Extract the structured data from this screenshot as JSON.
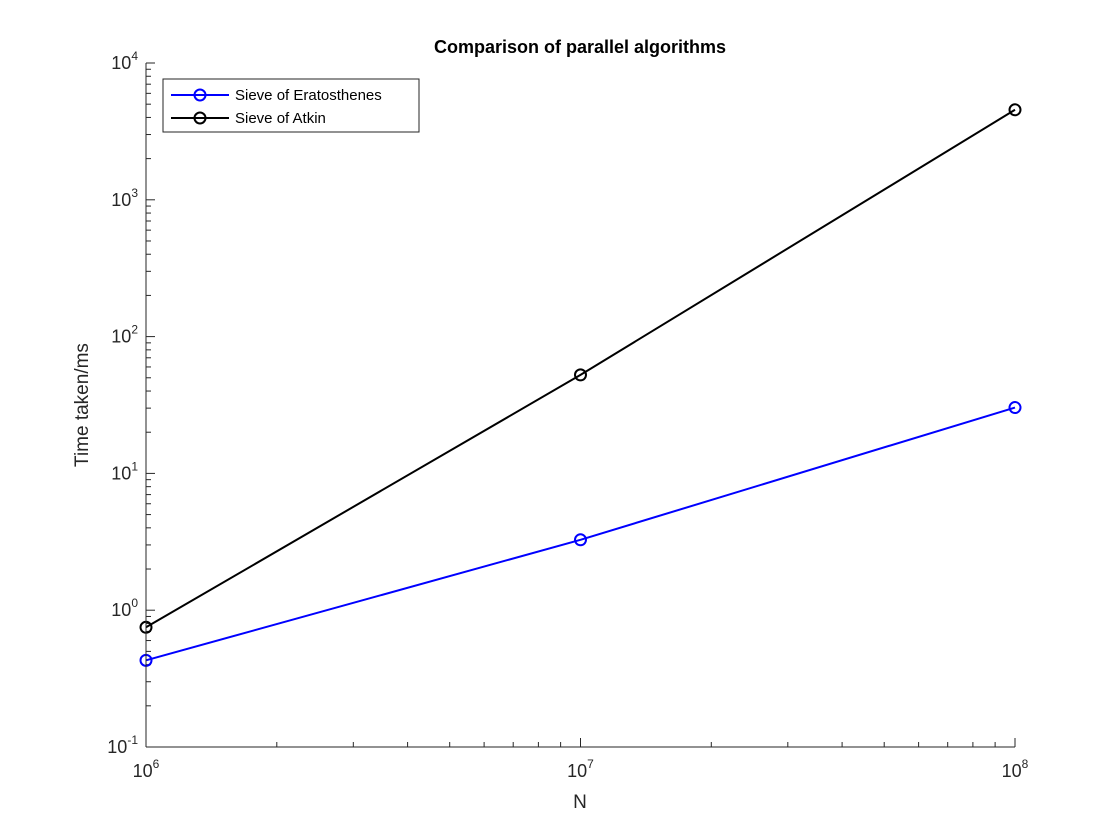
{
  "chart_data": {
    "type": "line",
    "title": "Comparison of parallel algorithms",
    "xlabel": "N",
    "ylabel": "Time taken/ms",
    "xscale": "log",
    "yscale": "log",
    "xlim": [
      1000000,
      100000000
    ],
    "ylim": [
      0.1,
      10000
    ],
    "x": [
      1000000,
      10000000,
      100000000
    ],
    "x_ticks": [
      {
        "value": 1000000,
        "base": "10",
        "exp": "6"
      },
      {
        "value": 10000000,
        "base": "10",
        "exp": "7"
      },
      {
        "value": 100000000,
        "base": "10",
        "exp": "8"
      }
    ],
    "y_ticks": [
      {
        "value": 0.1,
        "base": "10",
        "exp": "-1"
      },
      {
        "value": 1,
        "base": "10",
        "exp": "0"
      },
      {
        "value": 10,
        "base": "10",
        "exp": "1"
      },
      {
        "value": 100,
        "base": "10",
        "exp": "2"
      },
      {
        "value": 1000,
        "base": "10",
        "exp": "3"
      },
      {
        "value": 10000,
        "base": "10",
        "exp": "4"
      }
    ],
    "grid": false,
    "legend_position": "top-left",
    "series": [
      {
        "name": "Sieve of Eratosthenes",
        "color": "#0000ff",
        "marker": "circle",
        "values": [
          0.43,
          3.27,
          30.3
        ]
      },
      {
        "name": "Sieve of Atkin",
        "color": "#000000",
        "marker": "circle",
        "values": [
          0.75,
          52.5,
          4550
        ]
      }
    ]
  }
}
